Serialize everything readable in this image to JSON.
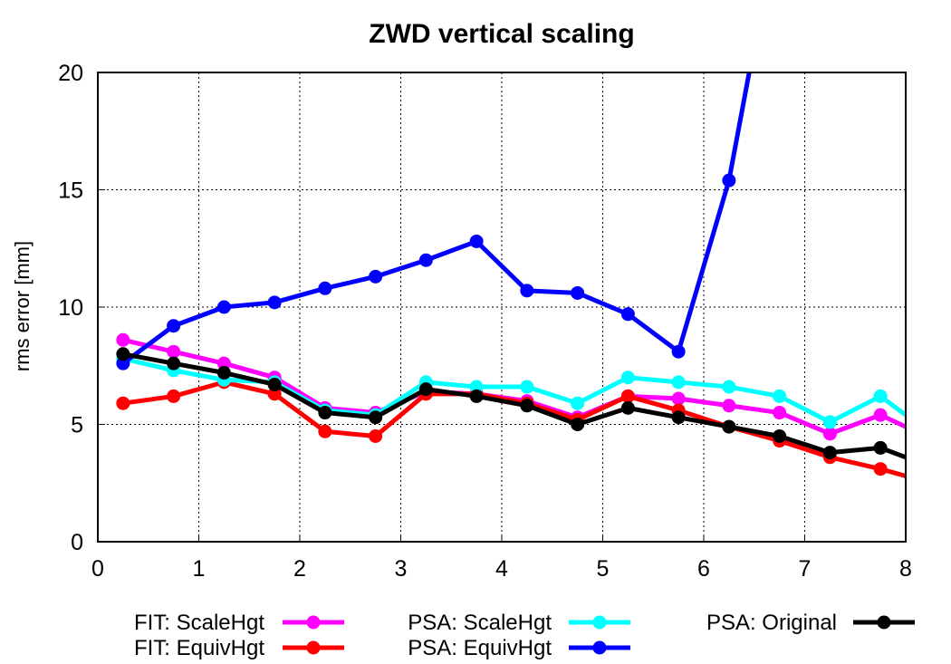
{
  "chart_data": {
    "type": "line",
    "title": "ZWD vertical scaling",
    "xlabel": "",
    "ylabel": "rms error [mm]",
    "xlim": [
      0,
      8
    ],
    "ylim": [
      0,
      20
    ],
    "xticks": [
      "0",
      "1",
      "2",
      "3",
      "4",
      "5",
      "6",
      "7",
      "8"
    ],
    "yticks": [
      "0",
      "5",
      "10",
      "15",
      "20"
    ],
    "grid": true,
    "legend_position": "bottom",
    "x": [
      0.25,
      0.75,
      1.25,
      1.75,
      2.25,
      2.75,
      3.25,
      3.75,
      4.25,
      4.75,
      5.25,
      5.75,
      6.25,
      6.75,
      7.25,
      7.75
    ],
    "series": [
      {
        "name": "FIT: ScaleHgt",
        "color": "#ff00ff",
        "values": [
          8.6,
          8.1,
          7.6,
          7.0,
          5.7,
          5.5,
          6.4,
          6.3,
          6.0,
          5.3,
          6.2,
          6.1,
          5.8,
          5.5,
          4.6,
          5.4
        ],
        "end": [
          8,
          4.9
        ]
      },
      {
        "name": "FIT: EquivHgt",
        "color": "#ff0000",
        "values": [
          5.9,
          6.2,
          6.8,
          6.3,
          4.7,
          4.5,
          6.3,
          6.3,
          5.9,
          5.2,
          6.2,
          5.6,
          4.9,
          4.3,
          3.6,
          3.1
        ],
        "end": [
          8,
          2.8
        ]
      },
      {
        "name": "PSA: ScaleHgt",
        "color": "#00ffff",
        "values": [
          7.8,
          7.3,
          6.9,
          6.8,
          5.6,
          5.4,
          6.8,
          6.6,
          6.6,
          5.9,
          7.0,
          6.8,
          6.6,
          6.2,
          5.1,
          6.2
        ],
        "end": [
          8,
          5.4
        ]
      },
      {
        "name": "PSA: EquivHgt",
        "color": "#0000ff",
        "values": [
          7.6,
          9.2,
          10.0,
          10.2,
          10.8,
          11.3,
          12.0,
          12.8,
          10.7,
          10.6,
          9.7,
          8.1,
          15.4
        ],
        "x": [
          0.25,
          0.75,
          1.25,
          1.75,
          2.25,
          2.75,
          3.25,
          3.75,
          4.25,
          4.75,
          5.25,
          5.75,
          6.25
        ],
        "end": [
          6.45,
          20
        ]
      },
      {
        "name": "PSA: Original",
        "color": "#000000",
        "values": [
          8.0,
          7.6,
          7.2,
          6.7,
          5.5,
          5.3,
          6.5,
          6.2,
          5.8,
          5.0,
          5.7,
          5.3,
          4.9,
          4.5,
          3.8,
          4.0
        ],
        "end": [
          8,
          3.6
        ]
      }
    ]
  }
}
